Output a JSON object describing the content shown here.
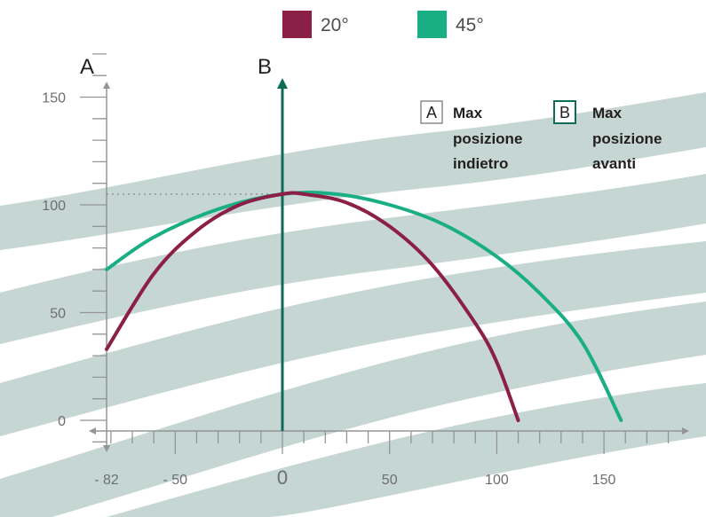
{
  "chart_data": {
    "type": "line",
    "xlim": [
      -82,
      185
    ],
    "ylim": [
      0,
      160
    ],
    "y_ticks": [
      {
        "value": 150,
        "label": "150"
      },
      {
        "value": 100,
        "label": "100"
      },
      {
        "value": 50,
        "label": "50"
      },
      {
        "value": 0,
        "label": "0"
      }
    ],
    "x_ticks": [
      {
        "value": -82,
        "label": "- 82"
      },
      {
        "value": -50,
        "label": "- 50"
      },
      {
        "value": 0,
        "label": "0"
      },
      {
        "value": 50,
        "label": "50"
      },
      {
        "value": 100,
        "label": "100"
      },
      {
        "value": 150,
        "label": "150"
      }
    ],
    "axis_a_label": "A",
    "axis_b_label": "B",
    "peak_height": 105,
    "legend": {
      "position": "top-center"
    },
    "series": [
      {
        "name": "20°",
        "color": "#8b1f45",
        "x": [
          -82,
          -60,
          -40,
          -20,
          0,
          10,
          30,
          50,
          70,
          90,
          100,
          110
        ],
        "y": [
          33,
          68,
          88,
          100,
          105,
          105,
          101,
          90,
          72,
          45,
          27,
          0
        ]
      },
      {
        "name": "45°",
        "color": "#1aae84",
        "x": [
          -82,
          -60,
          -30,
          0,
          25,
          50,
          75,
          100,
          120,
          140,
          158
        ],
        "y": [
          70,
          85,
          98,
          105,
          105,
          100,
          91,
          76,
          59,
          36,
          0
        ]
      }
    ],
    "annotations": [
      {
        "box": "A",
        "text": [
          "Max",
          "posizione",
          "indietro"
        ]
      },
      {
        "box": "B",
        "text": [
          "Max",
          "posizione",
          "avanti"
        ]
      }
    ]
  },
  "colors": {
    "band": "#c6d6d3",
    "axis": "#939598",
    "axis_b": "#0d6b57"
  }
}
